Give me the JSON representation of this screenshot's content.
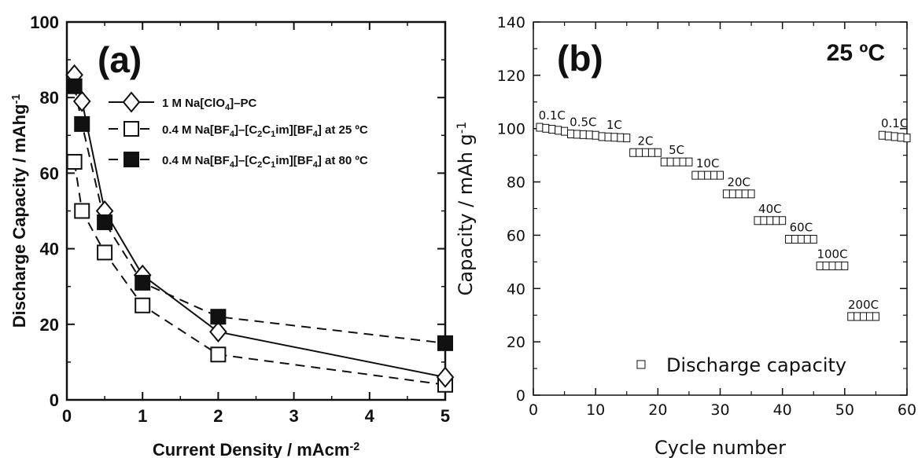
{
  "chart_data": [
    {
      "type": "line",
      "panel_label": "(a)",
      "xlabel": "Current Density / mAcm",
      "xlabel_sup": "-2",
      "ylabel": "Discharge Capacity / mAhg",
      "ylabel_sup": "-1",
      "xlim": [
        0,
        5
      ],
      "ylim": [
        0,
        100
      ],
      "x_ticks": [
        "0",
        "1",
        "2",
        "3",
        "4",
        "5"
      ],
      "y_ticks": [
        "0",
        "20",
        "40",
        "60",
        "80",
        "100"
      ],
      "legend_position": "top-right",
      "series": [
        {
          "legend": [
            {
              "t": "1 M Na[ClO"
            },
            {
              "t": "4",
              "sub": true
            },
            {
              "t": "]–PC"
            }
          ],
          "marker": "open-diamond",
          "line": "solid",
          "x": [
            0.1,
            0.2,
            0.5,
            1,
            2,
            5
          ],
          "y": [
            86,
            79,
            50,
            33,
            18,
            6
          ]
        },
        {
          "legend": [
            {
              "t": "0.4 M Na[BF"
            },
            {
              "t": "4",
              "sub": true
            },
            {
              "t": "]–[C"
            },
            {
              "t": "2",
              "sub": true
            },
            {
              "t": "C"
            },
            {
              "t": "1",
              "sub": true
            },
            {
              "t": "im][BF"
            },
            {
              "t": "4",
              "sub": true
            },
            {
              "t": "]  at 25 ºC"
            }
          ],
          "marker": "open-square",
          "line": "dashed",
          "x": [
            0.1,
            0.2,
            0.5,
            1,
            2,
            5
          ],
          "y": [
            63,
            50,
            39,
            25,
            12,
            4
          ]
        },
        {
          "legend": [
            {
              "t": "0.4 M Na[BF"
            },
            {
              "t": "4",
              "sub": true
            },
            {
              "t": "]–[C"
            },
            {
              "t": "2",
              "sub": true
            },
            {
              "t": "C"
            },
            {
              "t": "1",
              "sub": true
            },
            {
              "t": "im][BF"
            },
            {
              "t": "4",
              "sub": true
            },
            {
              "t": "]  at 80 ºC"
            }
          ],
          "marker": "filled-square",
          "line": "dashed",
          "x": [
            0.1,
            0.2,
            0.5,
            1,
            2,
            5
          ],
          "y": [
            83,
            73,
            47,
            31,
            22,
            15
          ]
        }
      ]
    },
    {
      "type": "scatter",
      "panel_label": "(b)",
      "annotation": "25 ºC",
      "xlabel": "Cycle number",
      "ylabel": "Capacity / mAh g",
      "ylabel_sup": "-1",
      "xlim": [
        0,
        60
      ],
      "ylim": [
        0,
        140
      ],
      "x_ticks": [
        "0",
        "10",
        "20",
        "30",
        "40",
        "50",
        "60"
      ],
      "y_ticks": [
        "0",
        "20",
        "40",
        "60",
        "80",
        "100",
        "120",
        "140"
      ],
      "legend": "Discharge capacity",
      "legend_position": "bottom-right",
      "marker": "open-square",
      "segments": [
        {
          "rate": "0.1C",
          "x_start": 1,
          "x_end": 5,
          "y_start": 100.5,
          "y_end": 99
        },
        {
          "rate": "0.5C",
          "x_start": 6,
          "x_end": 10,
          "y_start": 98,
          "y_end": 97.5
        },
        {
          "rate": "1C",
          "x_start": 11,
          "x_end": 15,
          "y_start": 97,
          "y_end": 96.5
        },
        {
          "rate": "2C",
          "x_start": 16,
          "x_end": 20,
          "y_start": 91,
          "y_end": 91
        },
        {
          "rate": "5C",
          "x_start": 21,
          "x_end": 25,
          "y_start": 87.5,
          "y_end": 87.5
        },
        {
          "rate": "10C",
          "x_start": 26,
          "x_end": 30,
          "y_start": 82.5,
          "y_end": 82.5
        },
        {
          "rate": "20C",
          "x_start": 31,
          "x_end": 35,
          "y_start": 75.5,
          "y_end": 75.5
        },
        {
          "rate": "40C",
          "x_start": 36,
          "x_end": 40,
          "y_start": 65.5,
          "y_end": 65.5
        },
        {
          "rate": "60C",
          "x_start": 41,
          "x_end": 45,
          "y_start": 58.5,
          "y_end": 58.5
        },
        {
          "rate": "100C",
          "x_start": 46,
          "x_end": 50,
          "y_start": 48.5,
          "y_end": 48.5
        },
        {
          "rate": "200C",
          "x_start": 51,
          "x_end": 55,
          "y_start": 29.5,
          "y_end": 29.5
        },
        {
          "rate": "0.1C",
          "x_start": 56,
          "x_end": 60,
          "y_start": 97.5,
          "y_end": 96.5
        }
      ]
    }
  ]
}
